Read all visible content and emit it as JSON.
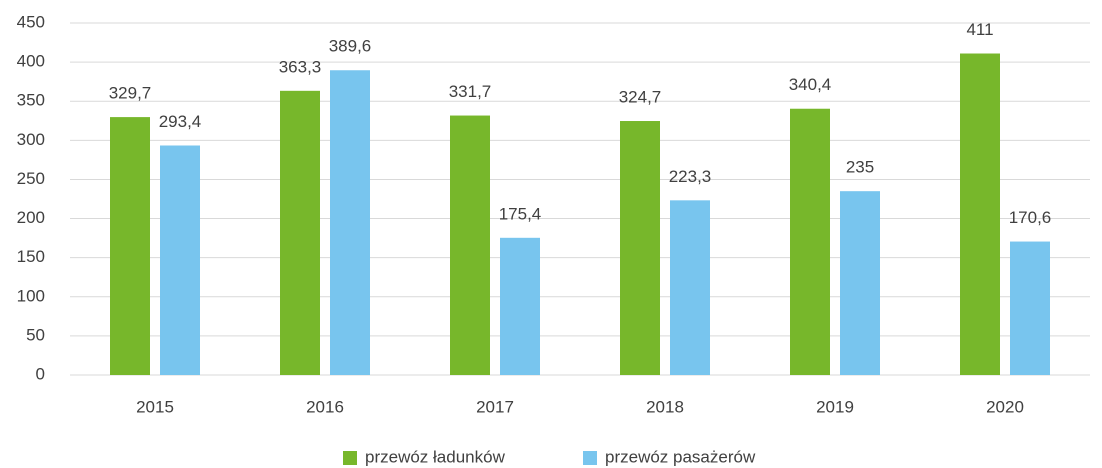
{
  "chart_data": {
    "type": "bar",
    "categories": [
      "2015",
      "2016",
      "2017",
      "2018",
      "2019",
      "2020"
    ],
    "series": [
      {
        "name": "przewóz ładunków",
        "color": "#77b72b",
        "values": [
          329.7,
          363.3,
          331.7,
          324.7,
          340.4,
          411
        ],
        "value_labels": [
          "329,7",
          "363,3",
          "331,7",
          "324,7",
          "340,4",
          "411"
        ]
      },
      {
        "name": "przewóz pasażerów",
        "color": "#78c5ee",
        "values": [
          293.4,
          389.6,
          175.4,
          223.3,
          235,
          170.6
        ],
        "value_labels": [
          "293,4",
          "389,6",
          "175,4",
          "223,3",
          "235",
          "170,6"
        ]
      }
    ],
    "ylim": [
      0,
      450
    ],
    "yticks": [
      0,
      50,
      100,
      150,
      200,
      250,
      300,
      350,
      400,
      450
    ],
    "grid": true,
    "legend": "bottom"
  }
}
